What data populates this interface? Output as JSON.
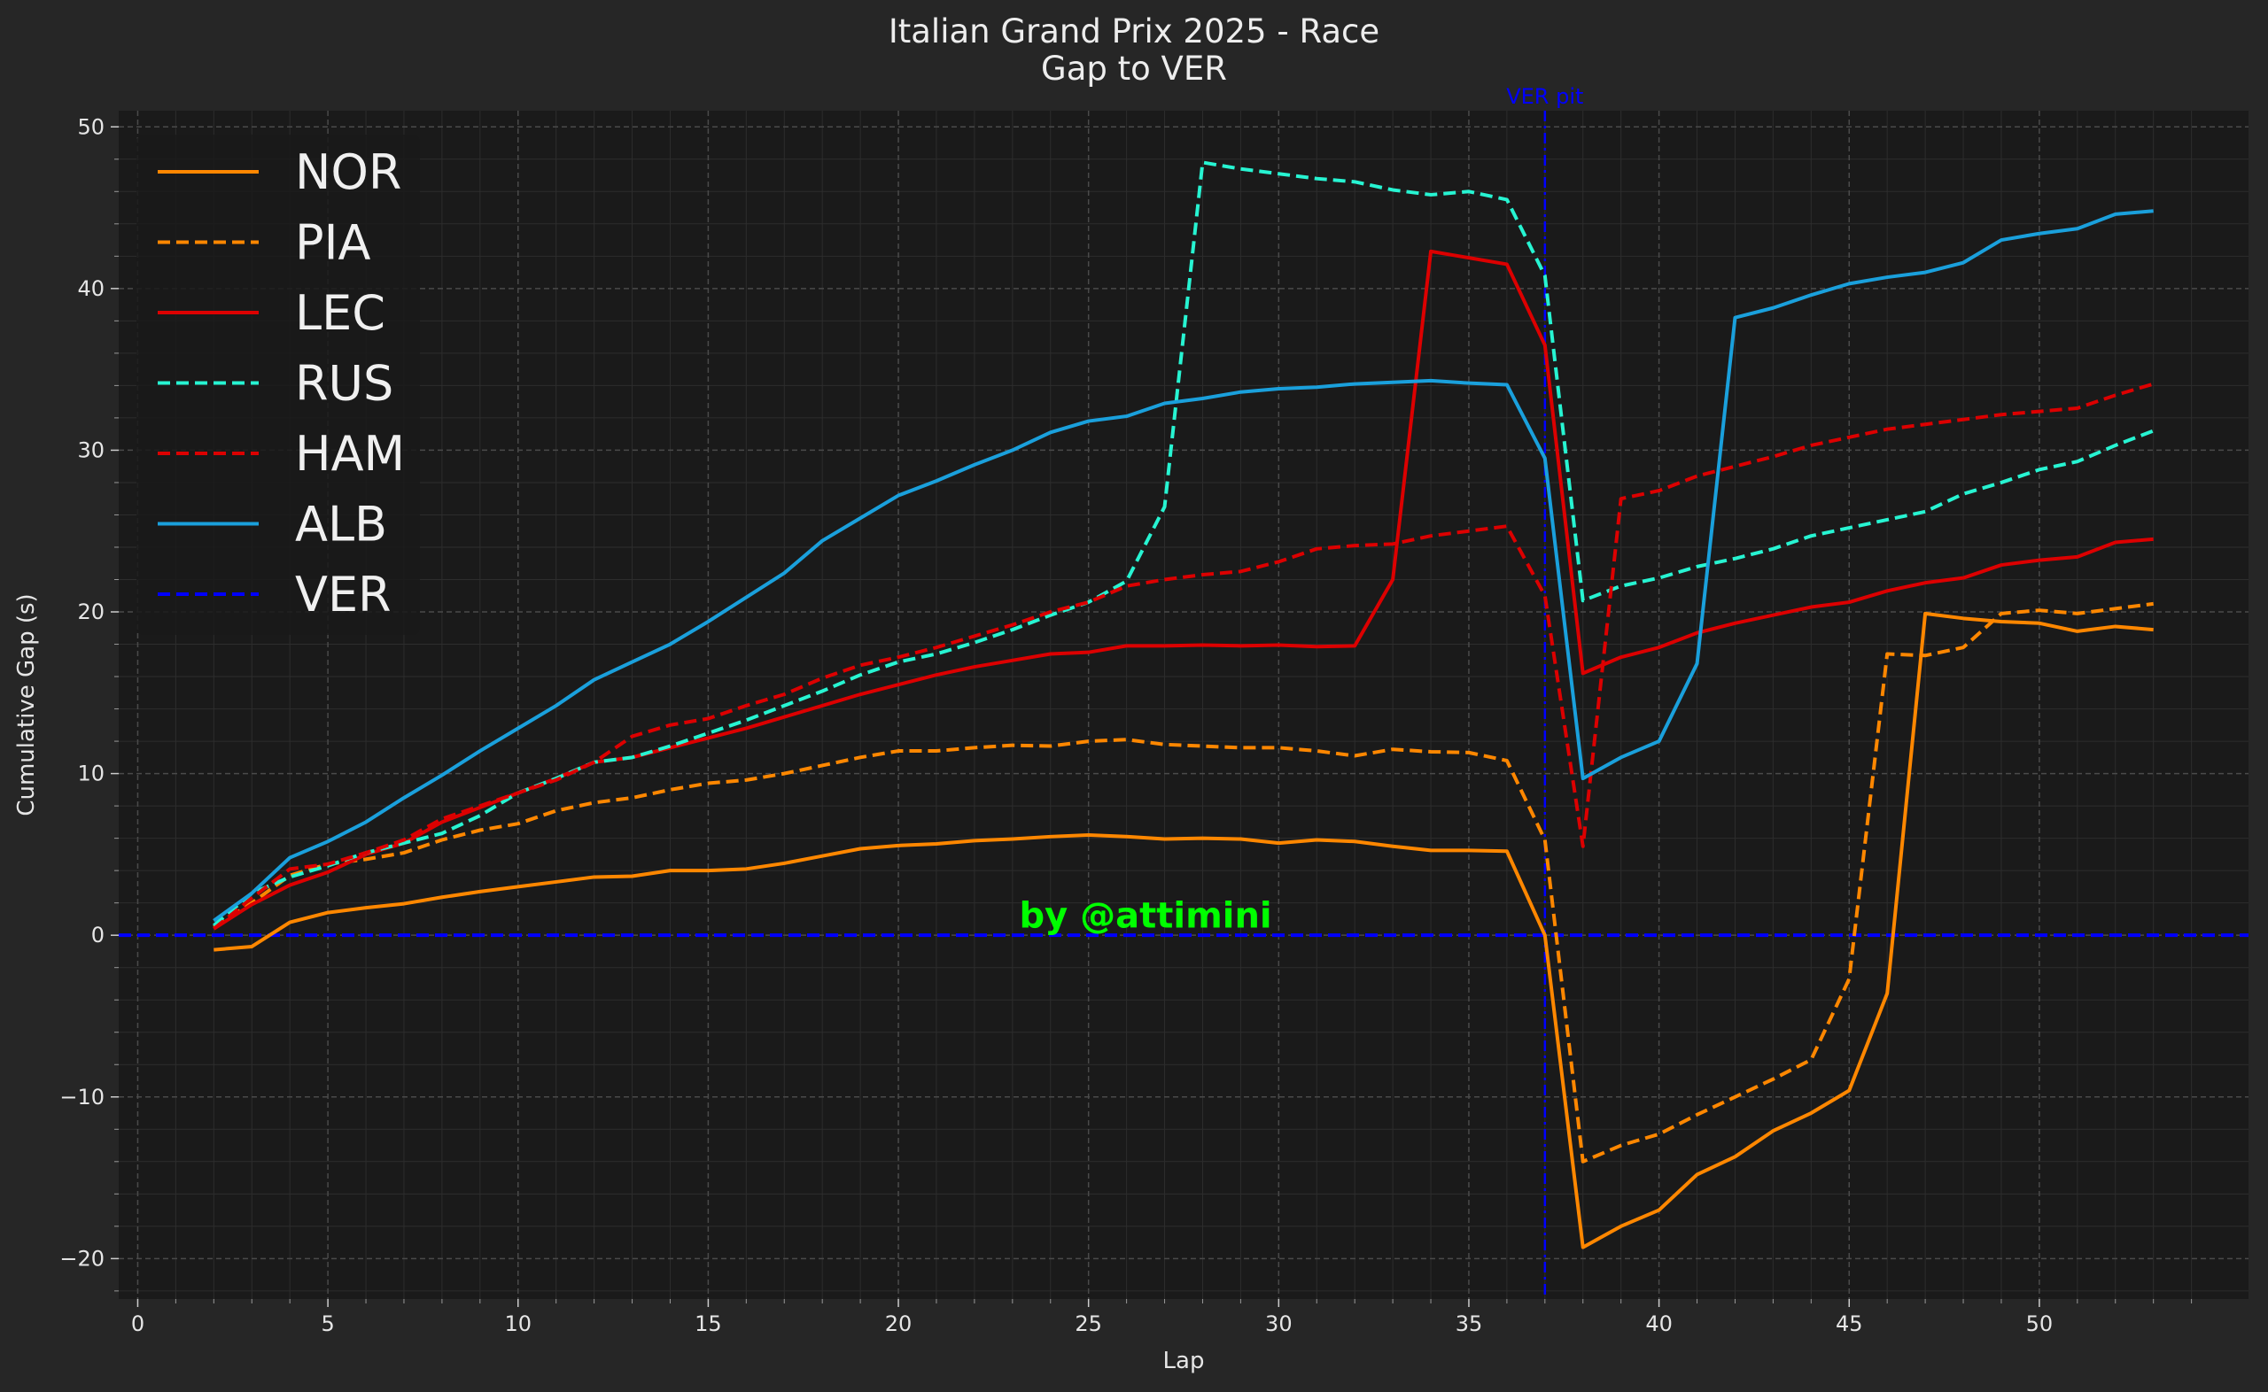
{
  "chart_data": {
    "type": "line",
    "title": "Italian Grand Prix 2025 - Race",
    "subtitle": "Gap to VER",
    "xlabel": "Lap",
    "ylabel": "Cumulative Gap (s)",
    "xlim": [
      -0.5,
      55.5
    ],
    "ylim": [
      -22.5,
      51
    ],
    "xticks": [
      0,
      5,
      10,
      15,
      20,
      25,
      30,
      35,
      40,
      45,
      50
    ],
    "yticks": [
      -20,
      -10,
      0,
      10,
      20,
      30,
      40,
      50
    ],
    "grid": true,
    "legend_position": "top-left",
    "annotations": [
      {
        "text": "VER pit",
        "x": 37,
        "color": "#0000ff"
      },
      {
        "text": "by @attimini",
        "x": 26.5,
        "y": 1.2,
        "color": "#00ff00"
      }
    ],
    "x": [
      2,
      3,
      4,
      5,
      6,
      7,
      8,
      9,
      10,
      11,
      12,
      13,
      14,
      15,
      16,
      17,
      18,
      19,
      20,
      21,
      22,
      23,
      24,
      25,
      26,
      27,
      28,
      29,
      30,
      31,
      32,
      33,
      34,
      35,
      36,
      37,
      38,
      39,
      40,
      41,
      42,
      43,
      44,
      45,
      46,
      47,
      48,
      49,
      50,
      51,
      52,
      53
    ],
    "series": [
      {
        "name": "NOR",
        "color": "#ff8700",
        "dash": "solid",
        "values": [
          -0.9,
          -0.7,
          0.8,
          1.4,
          1.7,
          1.95,
          2.35,
          2.7,
          3.0,
          3.3,
          3.6,
          3.65,
          4.0,
          4.0,
          4.1,
          4.45,
          4.9,
          5.35,
          5.55,
          5.65,
          5.85,
          5.95,
          6.1,
          6.2,
          6.1,
          5.95,
          6.0,
          5.95,
          5.7,
          5.9,
          5.8,
          5.5,
          5.25,
          5.25,
          5.2,
          0.0,
          -19.3,
          -18.0,
          -17.0,
          -14.8,
          -13.7,
          -12.1,
          -11.0,
          -9.6,
          -3.6,
          19.9,
          19.6,
          19.4,
          19.3,
          18.8,
          19.1,
          18.9
        ]
      },
      {
        "name": "PIA",
        "color": "#ff8700",
        "dash": "dashed",
        "values": [
          0.5,
          2.0,
          3.7,
          4.4,
          4.7,
          5.1,
          5.9,
          6.5,
          6.9,
          7.7,
          8.2,
          8.5,
          9.0,
          9.4,
          9.6,
          10.0,
          10.5,
          11.0,
          11.4,
          11.4,
          11.6,
          11.75,
          11.7,
          12.0,
          12.1,
          11.8,
          11.7,
          11.6,
          11.6,
          11.4,
          11.1,
          11.5,
          11.35,
          11.3,
          10.8,
          5.9,
          -14.0,
          -13.0,
          -12.3,
          -11.1,
          -10.0,
          -8.9,
          -7.7,
          -2.7,
          17.4,
          17.3,
          17.8,
          19.9,
          20.1,
          19.9,
          20.2,
          20.5
        ]
      },
      {
        "name": "LEC",
        "color": "#dc0000",
        "dash": "solid",
        "values": [
          0.4,
          1.9,
          3.1,
          3.9,
          5.0,
          5.7,
          7.0,
          7.9,
          8.8,
          9.7,
          10.7,
          11.0,
          11.6,
          12.2,
          12.8,
          13.5,
          14.2,
          14.9,
          15.5,
          16.1,
          16.6,
          17.0,
          17.4,
          17.5,
          17.9,
          17.9,
          17.95,
          17.9,
          17.95,
          17.85,
          17.9,
          22.0,
          42.3,
          41.9,
          41.5,
          36.5,
          16.2,
          17.2,
          17.8,
          18.7,
          19.3,
          19.8,
          20.3,
          20.6,
          21.3,
          21.8,
          22.1,
          22.9,
          23.2,
          23.4,
          24.3,
          24.5
        ]
      },
      {
        "name": "RUS",
        "color": "#27f4d2",
        "dash": "dashed",
        "values": [
          0.6,
          2.6,
          3.6,
          4.3,
          5.1,
          5.7,
          6.3,
          7.4,
          8.8,
          9.7,
          10.7,
          11.0,
          11.7,
          12.5,
          13.3,
          14.2,
          15.1,
          16.1,
          16.9,
          17.4,
          18.1,
          18.9,
          19.8,
          20.6,
          21.9,
          26.5,
          47.8,
          47.4,
          47.1,
          46.8,
          46.6,
          46.1,
          45.8,
          46.0,
          45.5,
          40.8,
          20.7,
          21.6,
          22.1,
          22.8,
          23.3,
          23.9,
          24.7,
          25.2,
          25.7,
          26.2,
          27.3,
          28.0,
          28.8,
          29.3,
          30.3,
          31.2
        ]
      },
      {
        "name": "HAM",
        "color": "#dc0000",
        "dash": "dashed",
        "values": [
          0.4,
          2.3,
          4.1,
          4.4,
          5.1,
          5.9,
          7.2,
          8.0,
          8.8,
          9.6,
          10.7,
          12.3,
          13.0,
          13.4,
          14.2,
          14.9,
          15.9,
          16.7,
          17.2,
          17.8,
          18.5,
          19.2,
          20.0,
          20.6,
          21.6,
          22.0,
          22.3,
          22.5,
          23.1,
          23.9,
          24.1,
          24.2,
          24.7,
          25.0,
          25.3,
          21.0,
          5.5,
          27.0,
          27.5,
          28.4,
          29.0,
          29.6,
          30.3,
          30.8,
          31.3,
          31.6,
          31.9,
          32.2,
          32.4,
          32.6,
          33.4,
          34.1
        ]
      },
      {
        "name": "ALB",
        "color": "#1aa0dc",
        "dash": "solid",
        "values": [
          0.9,
          2.6,
          4.8,
          5.8,
          7.0,
          8.5,
          9.9,
          11.4,
          12.8,
          14.2,
          15.8,
          16.9,
          18.0,
          19.4,
          20.9,
          22.4,
          24.4,
          25.8,
          27.2,
          28.1,
          29.1,
          30.0,
          31.1,
          31.8,
          32.1,
          32.9,
          33.2,
          33.6,
          33.8,
          33.9,
          34.1,
          34.2,
          34.3,
          34.15,
          34.05,
          29.5,
          9.7,
          11.0,
          12.0,
          16.8,
          38.2,
          38.8,
          39.6,
          40.3,
          40.7,
          41.0,
          41.6,
          43.0,
          43.4,
          43.7,
          44.6,
          44.8
        ]
      },
      {
        "name": "VER",
        "color": "#0000ff",
        "dash": "dashed",
        "values": [
          0,
          0,
          0,
          0,
          0,
          0,
          0,
          0,
          0,
          0,
          0,
          0,
          0,
          0,
          0,
          0,
          0,
          0,
          0,
          0,
          0,
          0,
          0,
          0,
          0,
          0,
          0,
          0,
          0,
          0,
          0,
          0,
          0,
          0,
          0,
          0,
          0,
          0,
          0,
          0,
          0,
          0,
          0,
          0,
          0,
          0,
          0,
          0,
          0,
          0,
          0,
          0
        ]
      }
    ]
  }
}
